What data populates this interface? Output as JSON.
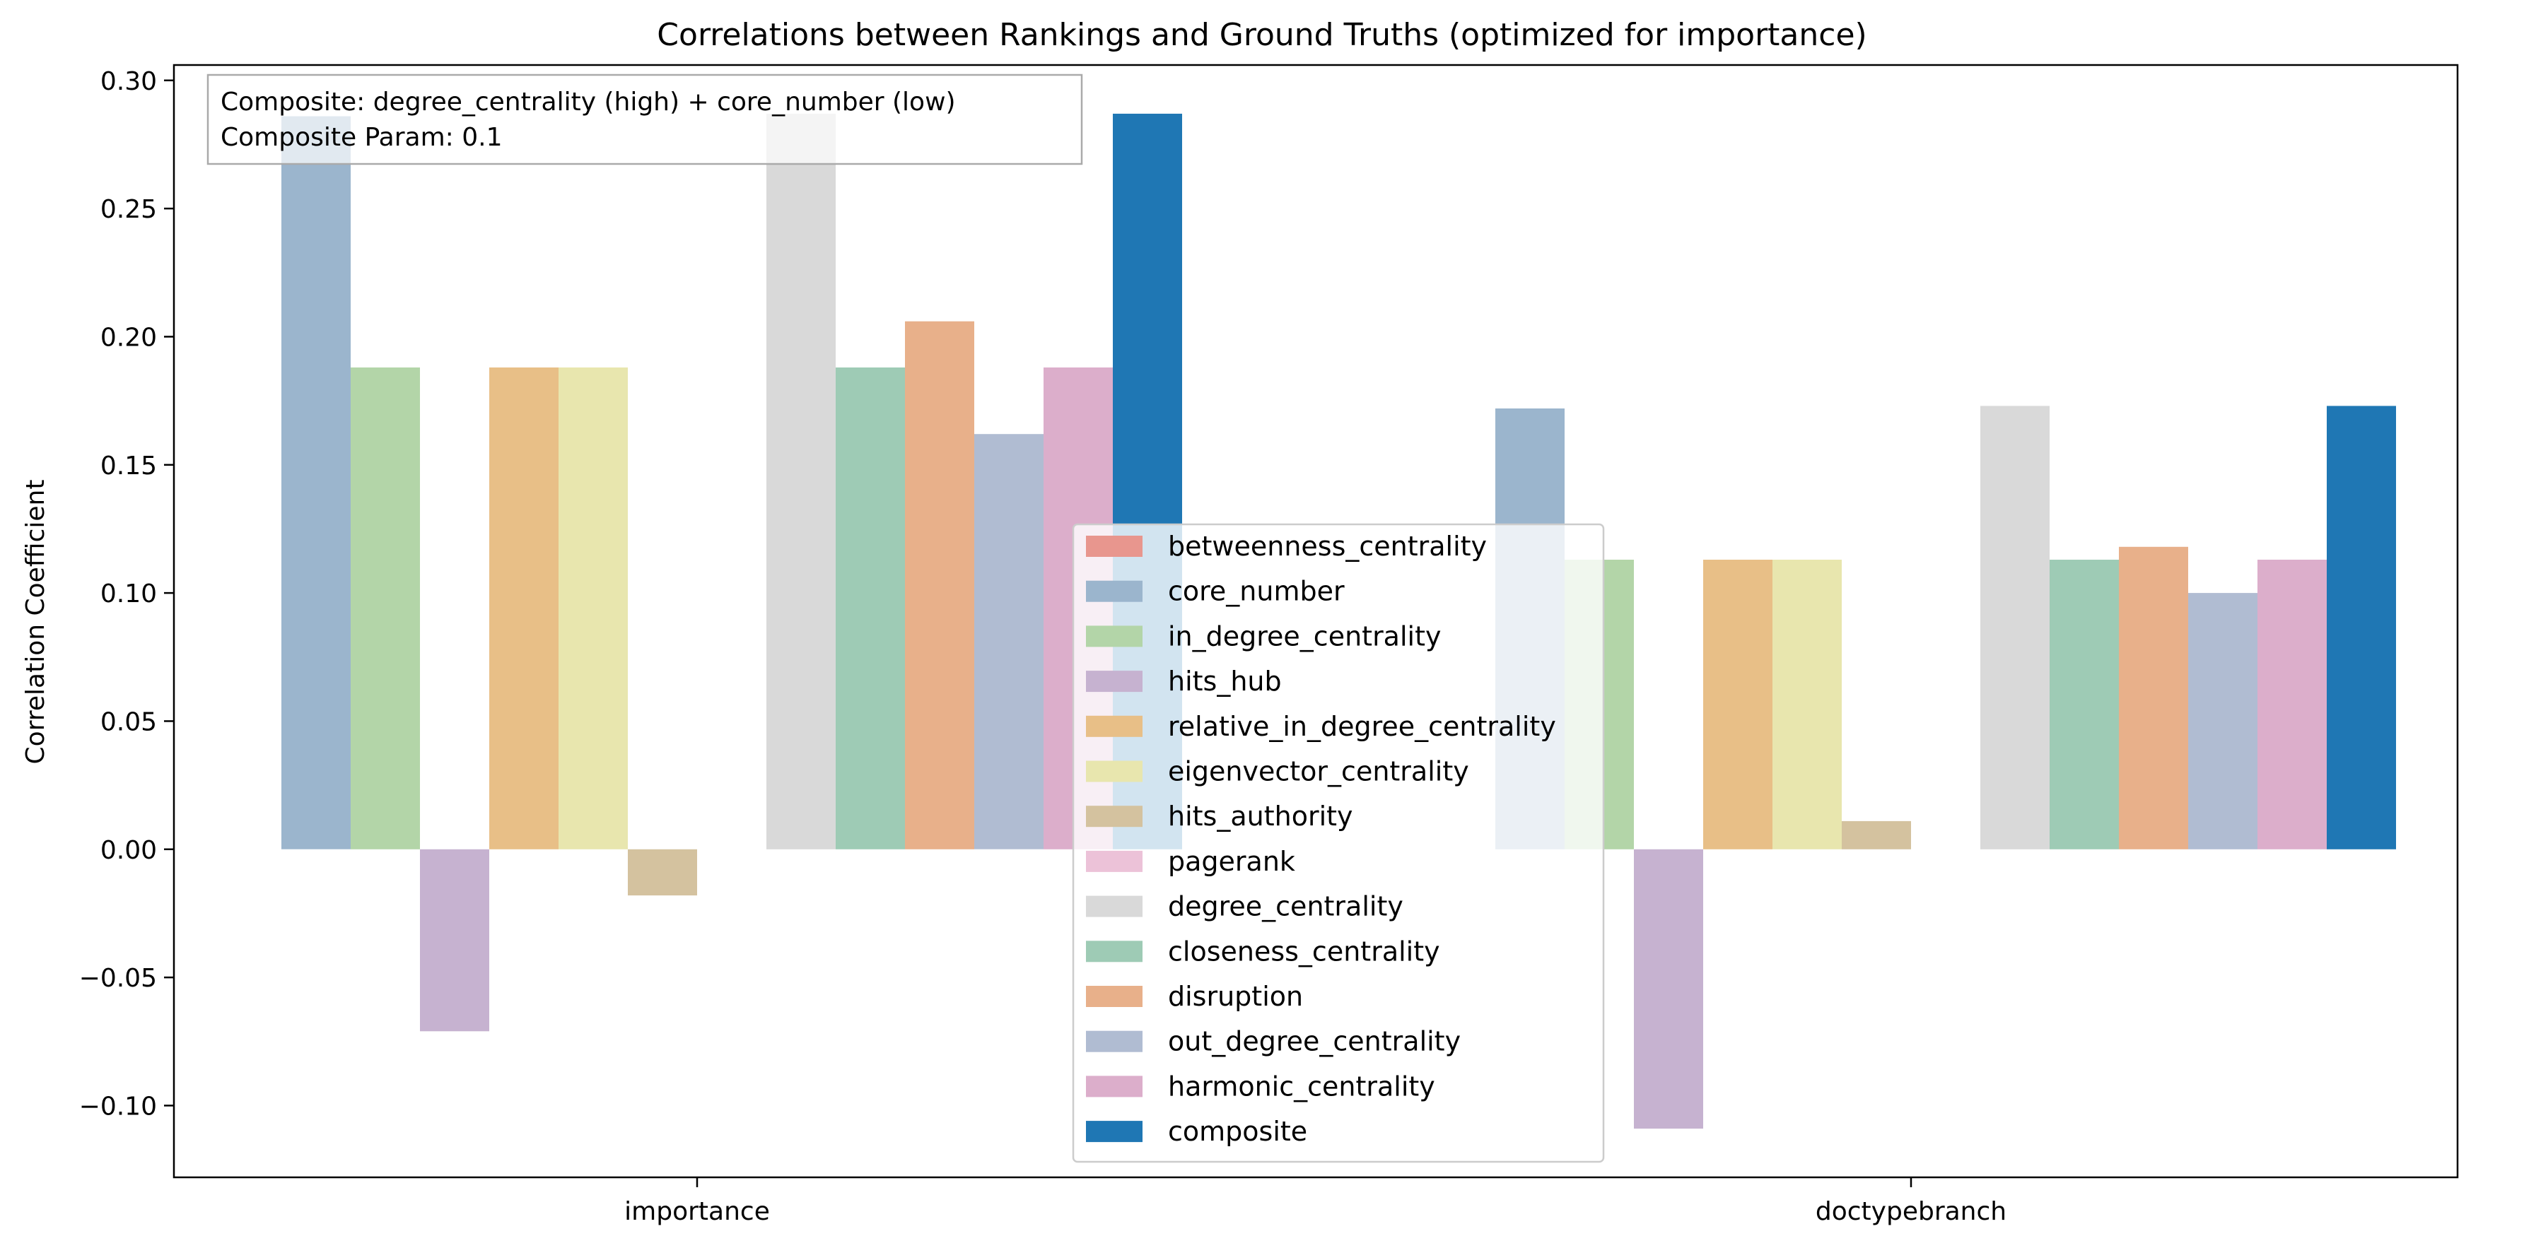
{
  "chart_data": {
    "type": "bar",
    "title": "Correlations between Rankings and Ground Truths (optimized for importance)",
    "xlabel": "",
    "ylabel": "Correlation Coefficient",
    "ylim": [
      -0.128,
      0.306
    ],
    "yticks": [
      "0.30",
      "0.25",
      "0.20",
      "0.15",
      "0.10",
      "0.05",
      "0.00",
      "−0.05",
      "−0.10"
    ],
    "yticks_values": [
      0.3,
      0.25,
      0.2,
      0.15,
      0.1,
      0.05,
      0.0,
      -0.05,
      -0.1
    ],
    "grid": false,
    "legend_position": "lower-center",
    "categories": [
      "importance",
      "doctypebranch"
    ],
    "annotation": {
      "line1": "Composite: degree_centrality (high) + core_number (low)",
      "line2": "Composite Param: 0.1"
    },
    "series": [
      {
        "name": "betweenness_centrality",
        "color": "#e8968e",
        "values": [
          0.0,
          0.0
        ]
      },
      {
        "name": "core_number",
        "color": "#9bb5cd",
        "values": [
          0.286,
          0.172
        ]
      },
      {
        "name": "in_degree_centrality",
        "color": "#b3d5a8",
        "values": [
          0.188,
          0.113
        ]
      },
      {
        "name": "hits_hub",
        "color": "#c6b2d0",
        "values": [
          -0.071,
          -0.109
        ]
      },
      {
        "name": "relative_in_degree_centrality",
        "color": "#e8bf87",
        "values": [
          0.188,
          0.113
        ]
      },
      {
        "name": "eigenvector_centrality",
        "color": "#e8e6ae",
        "values": [
          0.188,
          0.113
        ]
      },
      {
        "name": "hits_authority",
        "color": "#d4c29f",
        "values": [
          -0.018,
          0.011
        ]
      },
      {
        "name": "pagerank",
        "color": "#ecc2d8",
        "values": [
          0.0,
          0.0
        ]
      },
      {
        "name": "degree_centrality",
        "color": "#d9d9d9",
        "values": [
          0.287,
          0.173
        ]
      },
      {
        "name": "closeness_centrality",
        "color": "#9ecbb5",
        "values": [
          0.188,
          0.113
        ]
      },
      {
        "name": "disruption",
        "color": "#e8b08a",
        "values": [
          0.206,
          0.118
        ]
      },
      {
        "name": "out_degree_centrality",
        "color": "#b0bcd2",
        "values": [
          0.162,
          0.1
        ]
      },
      {
        "name": "harmonic_centrality",
        "color": "#dcaecb",
        "values": [
          0.188,
          0.113
        ]
      },
      {
        "name": "composite",
        "color": "#1f77b4",
        "values": [
          0.287,
          0.173
        ]
      }
    ]
  }
}
